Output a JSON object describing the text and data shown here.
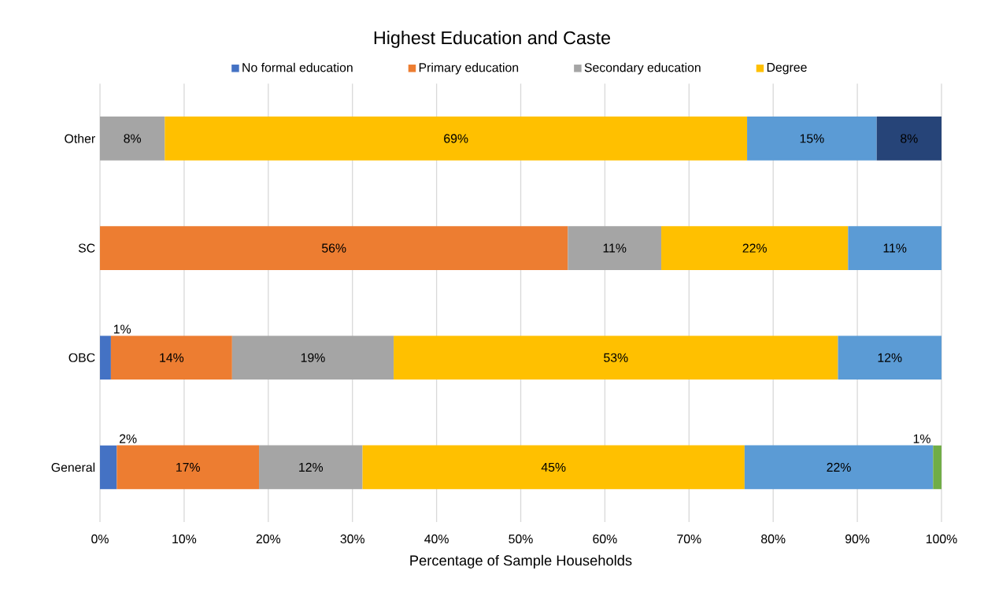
{
  "chart_data": {
    "type": "bar",
    "orientation": "horizontal",
    "stacked": true,
    "title": "Highest Education and Caste",
    "xlabel": "Percentage of Sample Households",
    "categories": [
      "Other",
      "SC",
      "OBC",
      "General"
    ],
    "series": [
      {
        "name": "No formal education",
        "color": "#4472c4",
        "values": [
          null,
          null,
          1.3,
          2.0
        ],
        "value_labels": [
          null,
          null,
          "1%",
          "2%"
        ]
      },
      {
        "name": "Primary education",
        "color": "#ed7d31",
        "values": [
          null,
          55.6,
          14.4,
          16.9
        ],
        "value_labels": [
          null,
          "56%",
          "14%",
          "17%"
        ]
      },
      {
        "name": "Secondary education",
        "color": "#a5a5a5",
        "values": [
          7.7,
          11.1,
          19.2,
          12.3
        ],
        "value_labels": [
          "8%",
          "11%",
          "19%",
          "12%"
        ]
      },
      {
        "name": "Degree",
        "color": "#ffc000",
        "values": [
          69.2,
          22.2,
          52.8,
          45.4
        ],
        "value_labels": [
          "69%",
          "22%",
          "53%",
          "45%"
        ]
      },
      {
        "color": "#5b9bd5",
        "values": [
          15.4,
          11.1,
          12.3,
          22.4
        ],
        "value_labels": [
          "15%",
          "11%",
          "12%",
          "22%"
        ]
      },
      {
        "color": "#70ad47",
        "values": [
          null,
          null,
          null,
          1.0
        ],
        "value_labels": [
          null,
          null,
          null,
          "1%"
        ]
      },
      {
        "color": "#264478",
        "values": [
          7.7,
          null,
          null,
          null
        ],
        "value_labels": [
          "8%",
          null,
          null,
          null
        ]
      }
    ],
    "xlim": [
      0,
      100
    ],
    "xticks": [
      {
        "value": 0,
        "label": "0%"
      },
      {
        "value": 10,
        "label": "10%"
      },
      {
        "value": 20,
        "label": "20%"
      },
      {
        "value": 30,
        "label": "30%"
      },
      {
        "value": 40,
        "label": "40%"
      },
      {
        "value": 50,
        "label": "50%"
      },
      {
        "value": 60,
        "label": "60%"
      },
      {
        "value": 70,
        "label": "70%"
      },
      {
        "value": 80,
        "label": "80%"
      },
      {
        "value": 90,
        "label": "90%"
      },
      {
        "value": 100,
        "label": "100%"
      }
    ],
    "grid": "x",
    "legend": "top"
  }
}
